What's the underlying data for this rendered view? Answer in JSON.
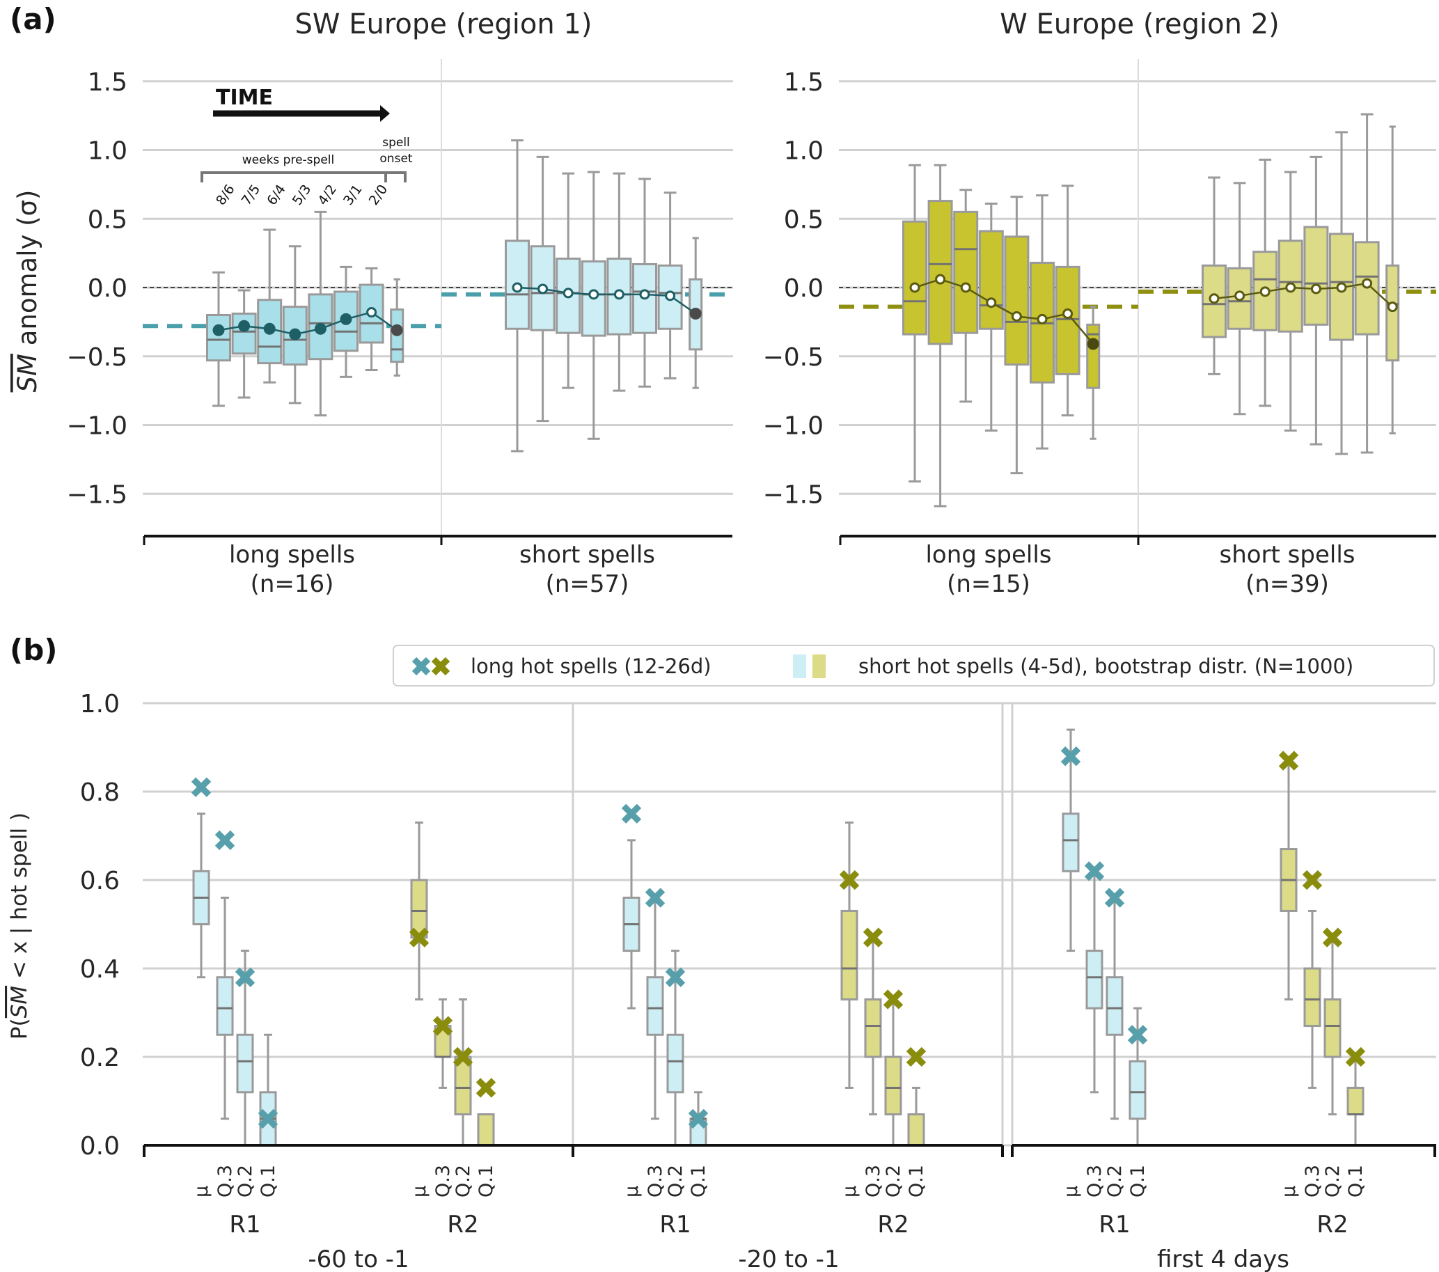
{
  "panel_a": {
    "label": "(a)",
    "ylabel": "SM anomaly (σ)",
    "ylabel_overline": "SM",
    "ylabel_rest": " anomaly (σ)",
    "yticks": [
      "1.5",
      "1.0",
      "0.5",
      "0.0",
      "−0.5",
      "−1.0",
      "−1.5"
    ],
    "annotation": {
      "time_label": "TIME",
      "weeks_label": "weeks pre-spell",
      "onset_label_1": "spell",
      "onset_label_2": "onset",
      "week_ticks": [
        "8/6",
        "7/5",
        "6/4",
        "5/3",
        "4/2",
        "3/1",
        "2/0"
      ]
    }
  },
  "panel_b": {
    "label": "(b)",
    "ylabel_prefix": "P(",
    "ylabel_overline": "SM",
    "ylabel_rest": " < x | hot spell )",
    "yticks": [
      "1.0",
      "0.8",
      "0.6",
      "0.4",
      "0.2",
      "0.0"
    ],
    "legend": {
      "long_label": "long hot spells (12-26d)",
      "short_label": "short hot spells (4-5d), bootstrap distr. (N=1000)"
    },
    "quantile_ticks": [
      "μ",
      "Q.3",
      "Q.2",
      "Q.1"
    ],
    "region_labels": [
      "R1",
      "R2"
    ],
    "period_labels": [
      "-60 to -1",
      "-20 to -1",
      "first 4 days"
    ]
  },
  "colors": {
    "r1_fill_long": "#a8dfe8",
    "r1_fill_short": "#cdeef4",
    "r1_line": "#1e5f66",
    "r1_ref": "#4a9fab",
    "r1_marker": "#57a0ab",
    "r2_fill_long": "#c8c430",
    "r2_fill_short": "#dcdb88",
    "r2_line": "#5a5a10",
    "r2_ref": "#8f8f10",
    "r2_marker": "#8a8c0c",
    "box_edge": "#9a9a9a",
    "median": "#737373",
    "grid": "#d0d0d0"
  },
  "chart_data": [
    {
      "type": "box",
      "title": "SW Europe (region 1)",
      "ylabel": "SM anomaly (σ)",
      "ylim": [
        -1.8,
        1.65
      ],
      "yticks": [
        1.5,
        1.0,
        0.5,
        0.0,
        -0.5,
        -1.0,
        -1.5
      ],
      "groups": [
        {
          "name": "long spells",
          "n_label": "(n=16)",
          "ref_mean": -0.28,
          "boxes": [
            {
              "whislo": -0.86,
              "q1": -0.53,
              "med": -0.38,
              "q3": -0.2,
              "whishi": 0.11,
              "mean": -0.31,
              "mean_sig": true
            },
            {
              "whislo": -0.8,
              "q1": -0.48,
              "med": -0.32,
              "q3": -0.19,
              "whishi": -0.02,
              "mean": -0.28,
              "mean_sig": true
            },
            {
              "whislo": -0.69,
              "q1": -0.55,
              "med": -0.43,
              "q3": -0.09,
              "whishi": 0.42,
              "mean": -0.3,
              "mean_sig": true
            },
            {
              "whislo": -0.84,
              "q1": -0.56,
              "med": -0.38,
              "q3": -0.14,
              "whishi": 0.3,
              "mean": -0.34,
              "mean_sig": true
            },
            {
              "whislo": -0.93,
              "q1": -0.52,
              "med": -0.26,
              "q3": -0.05,
              "whishi": 0.55,
              "mean": -0.3,
              "mean_sig": true
            },
            {
              "whislo": -0.65,
              "q1": -0.46,
              "med": -0.32,
              "q3": -0.03,
              "whishi": 0.15,
              "mean": -0.23,
              "mean_sig": true
            },
            {
              "whislo": -0.6,
              "q1": -0.4,
              "med": -0.26,
              "q3": 0.02,
              "whishi": 0.14,
              "mean": -0.18,
              "mean_sig": false
            },
            {
              "whislo": -0.64,
              "q1": -0.54,
              "med": -0.45,
              "q3": -0.16,
              "whishi": 0.06,
              "mean": -0.31,
              "mean_sig": true
            }
          ]
        },
        {
          "name": "short spells",
          "n_label": "(n=57)",
          "ref_mean": -0.05,
          "boxes": [
            {
              "whislo": -1.19,
              "q1": -0.3,
              "med": -0.05,
              "q3": 0.34,
              "whishi": 1.07,
              "mean": 0.0,
              "mean_sig": false
            },
            {
              "whislo": -0.97,
              "q1": -0.31,
              "med": -0.04,
              "q3": 0.3,
              "whishi": 0.95,
              "mean": -0.01,
              "mean_sig": false
            },
            {
              "whislo": -0.73,
              "q1": -0.33,
              "med": -0.04,
              "q3": 0.21,
              "whishi": 0.83,
              "mean": -0.04,
              "mean_sig": false
            },
            {
              "whislo": -1.1,
              "q1": -0.35,
              "med": -0.05,
              "q3": 0.19,
              "whishi": 0.84,
              "mean": -0.05,
              "mean_sig": false
            },
            {
              "whislo": -0.75,
              "q1": -0.34,
              "med": -0.05,
              "q3": 0.21,
              "whishi": 0.83,
              "mean": -0.05,
              "mean_sig": false
            },
            {
              "whislo": -0.72,
              "q1": -0.33,
              "med": -0.03,
              "q3": 0.17,
              "whishi": 0.79,
              "mean": -0.05,
              "mean_sig": false
            },
            {
              "whislo": -0.66,
              "q1": -0.3,
              "med": -0.04,
              "q3": 0.16,
              "whishi": 0.69,
              "mean": -0.06,
              "mean_sig": false
            },
            {
              "whislo": -0.73,
              "q1": -0.45,
              "med": -0.18,
              "q3": 0.06,
              "whishi": 0.36,
              "mean": -0.19,
              "mean_sig": true
            }
          ]
        }
      ]
    },
    {
      "type": "box",
      "title": "W Europe (region 2)",
      "ylim": [
        -1.8,
        1.65
      ],
      "yticks": [
        1.5,
        1.0,
        0.5,
        0.0,
        -0.5,
        -1.0,
        -1.5
      ],
      "groups": [
        {
          "name": "long spells",
          "n_label": "(n=15)",
          "ref_mean": -0.14,
          "boxes": [
            {
              "whislo": -1.41,
              "q1": -0.34,
              "med": -0.1,
              "q3": 0.48,
              "whishi": 0.89,
              "mean": 0.0,
              "mean_sig": false
            },
            {
              "whislo": -1.59,
              "q1": -0.41,
              "med": 0.17,
              "q3": 0.63,
              "whishi": 0.89,
              "mean": 0.06,
              "mean_sig": false
            },
            {
              "whislo": -0.83,
              "q1": -0.33,
              "med": 0.28,
              "q3": 0.55,
              "whishi": 0.71,
              "mean": 0.0,
              "mean_sig": false
            },
            {
              "whislo": -1.04,
              "q1": -0.3,
              "med": -0.13,
              "q3": 0.41,
              "whishi": 0.61,
              "mean": -0.11,
              "mean_sig": false
            },
            {
              "whislo": -1.35,
              "q1": -0.56,
              "med": -0.25,
              "q3": 0.37,
              "whishi": 0.66,
              "mean": -0.21,
              "mean_sig": false
            },
            {
              "whislo": -1.17,
              "q1": -0.69,
              "med": -0.26,
              "q3": 0.18,
              "whishi": 0.67,
              "mean": -0.23,
              "mean_sig": false
            },
            {
              "whislo": -0.93,
              "q1": -0.63,
              "med": -0.23,
              "q3": 0.15,
              "whishi": 0.74,
              "mean": -0.19,
              "mean_sig": false
            },
            {
              "whislo": -1.1,
              "q1": -0.73,
              "med": -0.34,
              "q3": -0.27,
              "whishi": -0.14,
              "mean": -0.41,
              "mean_sig": true
            }
          ]
        },
        {
          "name": "short spells",
          "n_label": "(n=39)",
          "ref_mean": -0.03,
          "boxes": [
            {
              "whislo": -0.63,
              "q1": -0.36,
              "med": -0.12,
              "q3": 0.16,
              "whishi": 0.8,
              "mean": -0.08,
              "mean_sig": false
            },
            {
              "whislo": -0.92,
              "q1": -0.3,
              "med": -0.1,
              "q3": 0.14,
              "whishi": 0.76,
              "mean": -0.06,
              "mean_sig": false
            },
            {
              "whislo": -0.86,
              "q1": -0.31,
              "med": 0.06,
              "q3": 0.26,
              "whishi": 0.93,
              "mean": -0.03,
              "mean_sig": false
            },
            {
              "whislo": -1.04,
              "q1": -0.32,
              "med": 0.04,
              "q3": 0.34,
              "whishi": 0.84,
              "mean": 0.0,
              "mean_sig": false
            },
            {
              "whislo": -1.14,
              "q1": -0.27,
              "med": 0.03,
              "q3": 0.44,
              "whishi": 0.95,
              "mean": -0.01,
              "mean_sig": false
            },
            {
              "whislo": -1.21,
              "q1": -0.38,
              "med": 0.04,
              "q3": 0.39,
              "whishi": 1.13,
              "mean": 0.0,
              "mean_sig": false
            },
            {
              "whislo": -1.2,
              "q1": -0.34,
              "med": 0.08,
              "q3": 0.33,
              "whishi": 1.26,
              "mean": 0.03,
              "mean_sig": false
            },
            {
              "whislo": -1.06,
              "q1": -0.53,
              "med": -0.12,
              "q3": 0.16,
              "whishi": 1.17,
              "mean": -0.14,
              "mean_sig": false
            }
          ]
        }
      ]
    },
    {
      "type": "box",
      "title": "",
      "ylabel": "P( SM < x | hot spell )",
      "ylim": [
        0.0,
        1.0
      ],
      "yticks": [
        1.0,
        0.8,
        0.6,
        0.4,
        0.2,
        0.0
      ],
      "legend_position": "top-right",
      "categories": [
        "μ",
        "Q.3",
        "Q.2",
        "Q.1"
      ],
      "periods": [
        {
          "name": "-60 to -1",
          "regions": [
            {
              "name": "R1",
              "long_x": [
                0.81,
                0.69,
                0.38,
                0.06
              ],
              "boxes": [
                {
                  "whislo": 0.38,
                  "q1": 0.5,
                  "med": 0.56,
                  "q3": 0.62,
                  "whishi": 0.75
                },
                {
                  "whislo": 0.06,
                  "q1": 0.25,
                  "med": 0.31,
                  "q3": 0.38,
                  "whishi": 0.56
                },
                {
                  "whislo": 0.0,
                  "q1": 0.12,
                  "med": 0.19,
                  "q3": 0.25,
                  "whishi": 0.44
                },
                {
                  "whislo": 0.0,
                  "q1": 0.0,
                  "med": 0.06,
                  "q3": 0.12,
                  "whishi": 0.25
                }
              ]
            },
            {
              "name": "R2",
              "long_x": [
                0.47,
                0.27,
                0.2,
                0.13
              ],
              "boxes": [
                {
                  "whislo": 0.33,
                  "q1": 0.47,
                  "med": 0.53,
                  "q3": 0.6,
                  "whishi": 0.73
                },
                {
                  "whislo": 0.13,
                  "q1": 0.2,
                  "med": 0.2,
                  "q3": 0.27,
                  "whishi": 0.33
                },
                {
                  "whislo": 0.0,
                  "q1": 0.07,
                  "med": 0.13,
                  "q3": 0.2,
                  "whishi": 0.33
                },
                {
                  "whislo": 0.0,
                  "q1": 0.0,
                  "med": 0.0,
                  "q3": 0.07,
                  "whishi": 0.07
                }
              ]
            }
          ]
        },
        {
          "name": "-20 to -1",
          "regions": [
            {
              "name": "R1",
              "long_x": [
                0.75,
                0.56,
                0.38,
                0.06
              ],
              "boxes": [
                {
                  "whislo": 0.31,
                  "q1": 0.44,
                  "med": 0.5,
                  "q3": 0.56,
                  "whishi": 0.69
                },
                {
                  "whislo": 0.06,
                  "q1": 0.25,
                  "med": 0.31,
                  "q3": 0.38,
                  "whishi": 0.56
                },
                {
                  "whislo": 0.0,
                  "q1": 0.12,
                  "med": 0.19,
                  "q3": 0.25,
                  "whishi": 0.44
                },
                {
                  "whislo": 0.0,
                  "q1": 0.0,
                  "med": 0.06,
                  "q3": 0.06,
                  "whishi": 0.12
                }
              ]
            },
            {
              "name": "R2",
              "long_x": [
                0.6,
                0.47,
                0.33,
                0.2
              ],
              "boxes": [
                {
                  "whislo": 0.13,
                  "q1": 0.33,
                  "med": 0.4,
                  "q3": 0.53,
                  "whishi": 0.73
                },
                {
                  "whislo": 0.07,
                  "q1": 0.2,
                  "med": 0.27,
                  "q3": 0.33,
                  "whishi": 0.47
                },
                {
                  "whislo": 0.0,
                  "q1": 0.07,
                  "med": 0.13,
                  "q3": 0.2,
                  "whishi": 0.33
                },
                {
                  "whislo": 0.0,
                  "q1": 0.0,
                  "med": 0.0,
                  "q3": 0.07,
                  "whishi": 0.13
                }
              ]
            }
          ]
        },
        {
          "name": "first 4 days",
          "regions": [
            {
              "name": "R1",
              "long_x": [
                0.88,
                0.62,
                0.56,
                0.25
              ],
              "boxes": [
                {
                  "whislo": 0.44,
                  "q1": 0.62,
                  "med": 0.69,
                  "q3": 0.75,
                  "whishi": 0.94
                },
                {
                  "whislo": 0.12,
                  "q1": 0.31,
                  "med": 0.38,
                  "q3": 0.44,
                  "whishi": 0.62
                },
                {
                  "whislo": 0.06,
                  "q1": 0.25,
                  "med": 0.31,
                  "q3": 0.38,
                  "whishi": 0.56
                },
                {
                  "whislo": 0.0,
                  "q1": 0.06,
                  "med": 0.12,
                  "q3": 0.19,
                  "whishi": 0.31
                }
              ]
            },
            {
              "name": "R2",
              "long_x": [
                0.87,
                0.6,
                0.47,
                0.2
              ],
              "boxes": [
                {
                  "whislo": 0.33,
                  "q1": 0.53,
                  "med": 0.6,
                  "q3": 0.67,
                  "whishi": 0.87
                },
                {
                  "whislo": 0.13,
                  "q1": 0.27,
                  "med": 0.33,
                  "q3": 0.4,
                  "whishi": 0.53
                },
                {
                  "whislo": 0.07,
                  "q1": 0.2,
                  "med": 0.27,
                  "q3": 0.33,
                  "whishi": 0.47
                },
                {
                  "whislo": 0.0,
                  "q1": 0.07,
                  "med": 0.07,
                  "q3": 0.13,
                  "whishi": 0.2
                }
              ]
            }
          ]
        }
      ]
    }
  ]
}
